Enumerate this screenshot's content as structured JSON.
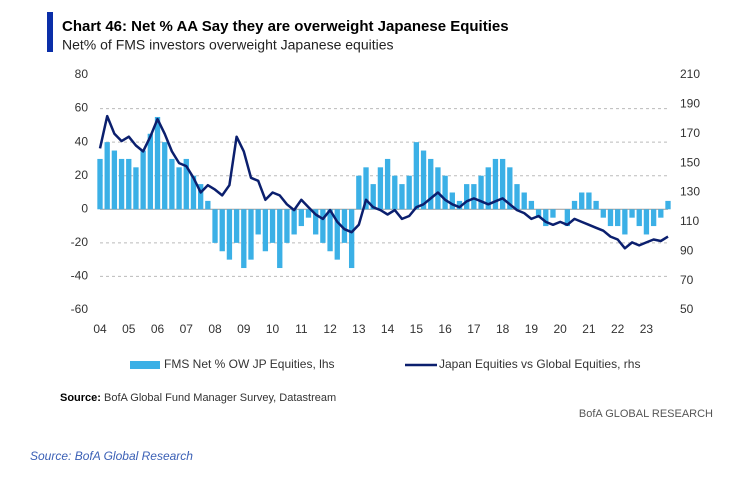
{
  "chart_data": {
    "type": "bar-line",
    "title": "Chart 46: Net % AA Say they are overweight Japanese Equities",
    "subtitle": "Net% of FMS investors overweight Japanese equities",
    "x": [
      2004,
      2004.25,
      2004.5,
      2004.75,
      2005,
      2005.25,
      2005.5,
      2005.75,
      2006,
      2006.25,
      2006.5,
      2006.75,
      2007,
      2007.25,
      2007.5,
      2007.75,
      2008,
      2008.25,
      2008.5,
      2008.75,
      2009,
      2009.25,
      2009.5,
      2009.75,
      2010,
      2010.25,
      2010.5,
      2010.75,
      2011,
      2011.25,
      2011.5,
      2011.75,
      2012,
      2012.25,
      2012.5,
      2012.75,
      2013,
      2013.25,
      2013.5,
      2013.75,
      2014,
      2014.25,
      2014.5,
      2014.75,
      2015,
      2015.25,
      2015.5,
      2015.75,
      2016,
      2016.25,
      2016.5,
      2016.75,
      2017,
      2017.25,
      2017.5,
      2017.75,
      2018,
      2018.25,
      2018.5,
      2018.75,
      2019,
      2019.25,
      2019.5,
      2019.75,
      2020,
      2020.25,
      2020.5,
      2020.75,
      2021,
      2021.25,
      2021.5,
      2021.75,
      2022,
      2022.25,
      2022.5,
      2022.75,
      2023,
      2023.25,
      2023.5,
      2023.75
    ],
    "series": [
      {
        "name": "FMS Net % OW JP Equities, lhs",
        "color": "#3bb0e6",
        "axis": "y",
        "values": [
          30,
          40,
          35,
          30,
          30,
          25,
          35,
          45,
          55,
          40,
          30,
          25,
          30,
          20,
          15,
          5,
          -20,
          -25,
          -30,
          -20,
          -35,
          -30,
          -15,
          -25,
          -20,
          -35,
          -20,
          -15,
          -10,
          -5,
          -15,
          -20,
          -25,
          -30,
          -20,
          -35,
          20,
          25,
          15,
          25,
          30,
          20,
          15,
          20,
          40,
          35,
          30,
          25,
          20,
          10,
          5,
          15,
          15,
          20,
          25,
          30,
          30,
          25,
          15,
          10,
          5,
          -5,
          -10,
          -5,
          0,
          -10,
          5,
          10,
          10,
          5,
          -5,
          -10,
          -10,
          -15,
          -5,
          -10,
          -15,
          -10,
          -5,
          5
        ]
      },
      {
        "name": "Japan Equities vs Global Equities, rhs",
        "color": "#0b1f6e",
        "axis": "y2",
        "values": [
          160,
          182,
          170,
          165,
          168,
          162,
          158,
          168,
          180,
          170,
          158,
          150,
          148,
          140,
          130,
          135,
          132,
          128,
          135,
          168,
          158,
          140,
          138,
          125,
          130,
          128,
          122,
          118,
          125,
          120,
          115,
          112,
          118,
          110,
          105,
          103,
          108,
          125,
          120,
          118,
          115,
          118,
          112,
          114,
          120,
          122,
          126,
          130,
          125,
          122,
          120,
          124,
          126,
          124,
          122,
          124,
          126,
          122,
          118,
          116,
          112,
          114,
          110,
          108,
          110,
          108,
          112,
          110,
          108,
          106,
          104,
          100,
          98,
          92,
          96,
          94,
          96,
          98,
          97,
          100
        ]
      }
    ],
    "xlim": [
      2004,
      2023.75
    ],
    "xticks": [
      {
        "value": 2004,
        "label": "04"
      },
      {
        "value": 2005,
        "label": "05"
      },
      {
        "value": 2006,
        "label": "06"
      },
      {
        "value": 2007,
        "label": "07"
      },
      {
        "value": 2008,
        "label": "08"
      },
      {
        "value": 2009,
        "label": "09"
      },
      {
        "value": 2010,
        "label": "10"
      },
      {
        "value": 2011,
        "label": "11"
      },
      {
        "value": 2012,
        "label": "12"
      },
      {
        "value": 2013,
        "label": "13"
      },
      {
        "value": 2014,
        "label": "14"
      },
      {
        "value": 2015,
        "label": "15"
      },
      {
        "value": 2016,
        "label": "16"
      },
      {
        "value": 2017,
        "label": "17"
      },
      {
        "value": 2018,
        "label": "18"
      },
      {
        "value": 2019,
        "label": "19"
      },
      {
        "value": 2020,
        "label": "20"
      },
      {
        "value": 2021,
        "label": "21"
      },
      {
        "value": 2022,
        "label": "22"
      },
      {
        "value": 2023,
        "label": "23"
      }
    ],
    "ylim": [
      -60,
      80
    ],
    "yticks": [
      -60,
      -40,
      -20,
      0,
      20,
      40,
      60,
      80
    ],
    "y2lim": [
      50,
      210
    ],
    "y2ticks": [
      50,
      70,
      90,
      110,
      130,
      150,
      170,
      190,
      210
    ],
    "grid": true,
    "source_label": "Source:",
    "source": "BofA Global Fund Manager Survey, Datastream",
    "brand": "BofA GLOBAL RESEARCH",
    "footer": "Source: BofA Global Research"
  }
}
